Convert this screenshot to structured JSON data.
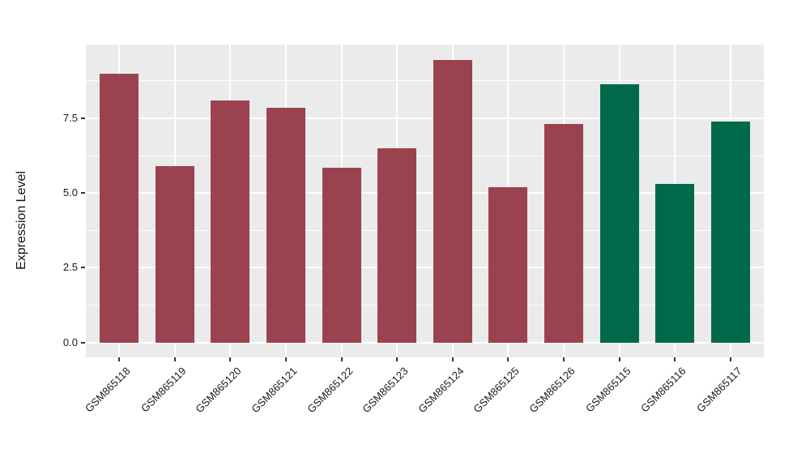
{
  "chart_data": {
    "type": "bar",
    "title": "",
    "xlabel": "",
    "ylabel": "Expression Level",
    "categories": [
      "GSM865118",
      "GSM865119",
      "GSM865120",
      "GSM865121",
      "GSM865122",
      "GSM865123",
      "GSM865124",
      "GSM865125",
      "GSM865126",
      "GSM865115",
      "GSM865116",
      "GSM865117"
    ],
    "values": [
      9.0,
      5.9,
      8.1,
      7.85,
      5.85,
      6.5,
      9.45,
      5.2,
      7.3,
      8.65,
      5.3,
      7.4
    ],
    "bar_colors": [
      "#9A434F",
      "#9A434F",
      "#9A434F",
      "#9A434F",
      "#9A434F",
      "#9A434F",
      "#9A434F",
      "#9A434F",
      "#9A434F",
      "#00694B",
      "#00694B",
      "#00694B"
    ],
    "group_colors": {
      "maroon_group": "#9A434F",
      "green_group": "#00694B"
    },
    "ytick_labels": [
      "0.0",
      "2.5",
      "5.0",
      "7.5"
    ],
    "ytick_values": [
      0,
      2.5,
      5,
      7.5
    ],
    "minor_ytick_values": [
      1.25,
      3.75,
      6.25,
      8.75
    ],
    "ylim": [
      -0.5,
      9.97
    ],
    "grid": true,
    "grid_color": "#FFFFFF",
    "panel_bg": "#EBEBEB",
    "tick_mark_color": "#333333",
    "axis_text_color": "#1A1A1A",
    "legend": "none"
  }
}
